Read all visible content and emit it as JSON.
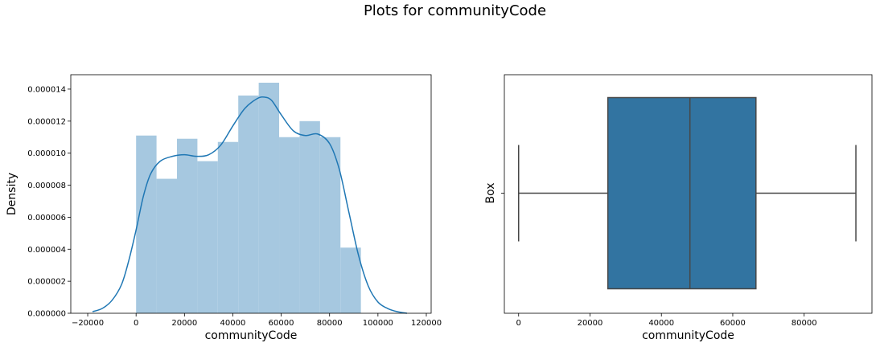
{
  "figure": {
    "title": "Plots for communityCode"
  },
  "chart_data": [
    {
      "type": "histogram",
      "xlabel": "communityCode",
      "ylabel": "Density",
      "xlim": [
        -27000,
        122000
      ],
      "ylim": [
        0,
        1.49e-05
      ],
      "xticks": [
        -20000,
        0,
        20000,
        40000,
        60000,
        80000,
        100000,
        120000
      ],
      "xtick_labels": [
        "−20000",
        "0",
        "20000",
        "40000",
        "60000",
        "80000",
        "100000",
        "120000"
      ],
      "yticks": [
        0,
        2e-06,
        4e-06,
        6e-06,
        8e-06,
        1e-05,
        1.2e-05,
        1.4e-05
      ],
      "ytick_labels": [
        "0.000000",
        "0.000002",
        "0.000004",
        "0.000006",
        "0.000008",
        "0.000010",
        "0.000012",
        "0.000014"
      ],
      "bin_edges": [
        0,
        8450,
        16900,
        25350,
        33800,
        42250,
        50700,
        59150,
        67600,
        76050,
        84500,
        92950
      ],
      "values": [
        1.11e-05,
        8.4e-06,
        1.09e-05,
        9.5e-06,
        1.07e-05,
        1.36e-05,
        1.44e-05,
        1.1e-05,
        1.2e-05,
        1.1e-05,
        4.1e-06
      ],
      "bar_color": "#a6c8e0",
      "kde": {
        "color": "#1f77b4",
        "x": [
          -18000,
          -14000,
          -10000,
          -6000,
          -3000,
          0,
          3000,
          6000,
          10000,
          15000,
          20000,
          25000,
          30000,
          35000,
          40000,
          45000,
          50000,
          53000,
          56000,
          60000,
          65000,
          70000,
          75000,
          80000,
          84000,
          88000,
          92000,
          96000,
          100000,
          104000,
          108000,
          112000
        ],
        "y": [
          1e-07,
          3e-07,
          8e-07,
          1.8e-06,
          3.3e-06,
          5.2e-06,
          7.3e-06,
          8.7e-06,
          9.5e-06,
          9.8e-06,
          9.9e-06,
          9.8e-06,
          9.9e-06,
          1.05e-05,
          1.17e-05,
          1.28e-05,
          1.34e-05,
          1.35e-05,
          1.33e-05,
          1.24e-05,
          1.14e-05,
          1.11e-05,
          1.12e-05,
          1.06e-05,
          9e-06,
          6.3e-06,
          3.6e-06,
          1.7e-06,
          7e-07,
          3e-07,
          1e-07,
          0.0
        ]
      }
    },
    {
      "type": "box",
      "xlabel": "communityCode",
      "ylabel": "Box",
      "xlim": [
        -4000,
        99000
      ],
      "xticks": [
        0,
        20000,
        40000,
        60000,
        80000
      ],
      "xtick_labels": [
        "0",
        "20000",
        "40000",
        "60000",
        "80000"
      ],
      "stats": {
        "whisker_low": 0,
        "q1": 25000,
        "median": 48000,
        "q3": 66500,
        "whisker_high": 94500
      },
      "box_color": "#3274a1",
      "line_color": "#474747"
    }
  ]
}
